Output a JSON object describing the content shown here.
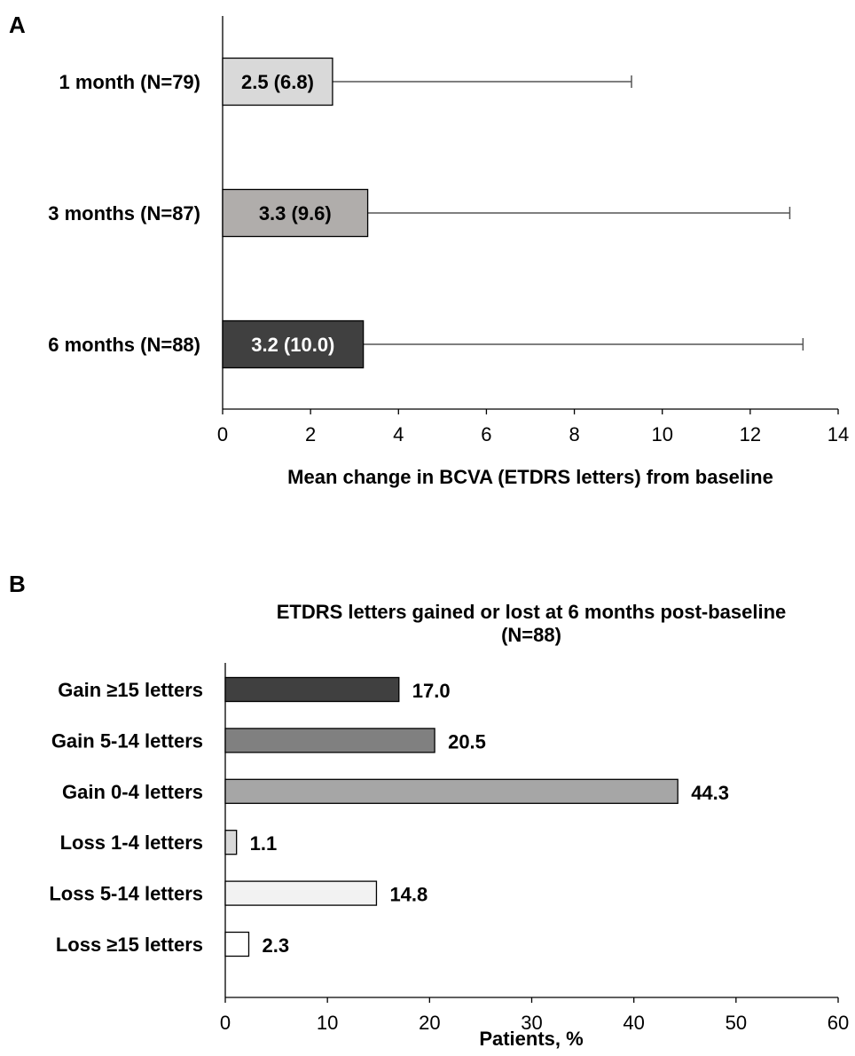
{
  "chart_data": [
    {
      "panel_label": "A",
      "type": "bar",
      "orientation": "horizontal",
      "title": "",
      "xlabel": "Mean change in BCVA (ETDRS letters) from baseline",
      "ylabel": "",
      "xlim": [
        0,
        14
      ],
      "xticks": [
        "0",
        "2",
        "4",
        "6",
        "8",
        "10",
        "12",
        "14"
      ],
      "categories": [
        "1 month (N=79)",
        "3 months (N=87)",
        "6 months (N=88)"
      ],
      "values": [
        2.5,
        3.3,
        3.2
      ],
      "error_upper": [
        6.8,
        9.6,
        10.0
      ],
      "data_labels": [
        "2.5 (6.8)",
        "3.3 (9.6)",
        "3.2 (10.0)"
      ],
      "colors": [
        "#d9d9d9",
        "#b0adab",
        "#404040"
      ],
      "label_colors": [
        "#000000",
        "#000000",
        "#ffffff"
      ],
      "grid": false,
      "legend": "none"
    },
    {
      "panel_label": "B",
      "type": "bar",
      "orientation": "horizontal",
      "title": "ETDRS letters gained or lost at 6 months post-baseline",
      "subtitle": "(N=88)",
      "xlabel": "Patients, %",
      "ylabel": "",
      "xlim": [
        0,
        60
      ],
      "xticks": [
        "0",
        "10",
        "20",
        "30",
        "40",
        "50",
        "60"
      ],
      "categories": [
        "Gain ≥15 letters",
        "Gain 5-14 letters",
        "Gain 0-4 letters",
        "Loss 1-4 letters",
        "Loss 5-14 letters",
        "Loss ≥15 letters"
      ],
      "values": [
        17.0,
        20.5,
        44.3,
        1.1,
        14.8,
        2.3
      ],
      "data_labels": [
        "17.0",
        "20.5",
        "44.3",
        "1.1",
        "14.8",
        "2.3"
      ],
      "colors": [
        "#404040",
        "#808080",
        "#a6a6a6",
        "#d9d9d9",
        "#f2f2f2",
        "#ffffff"
      ],
      "grid": false,
      "legend": "none"
    }
  ]
}
